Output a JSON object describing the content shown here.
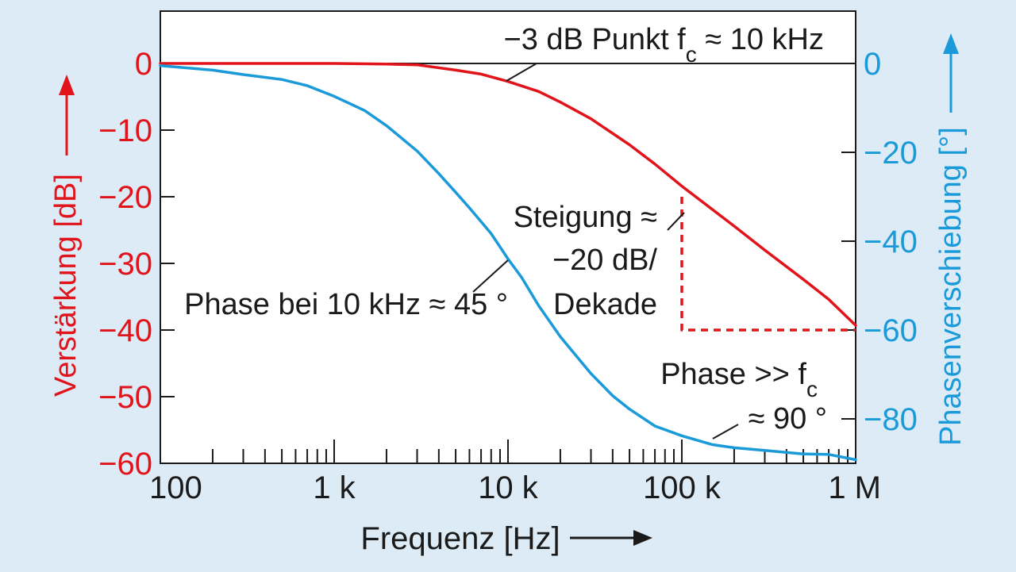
{
  "chart_data": {
    "type": "line",
    "x_scale": "log",
    "xlim": [
      100,
      1000000
    ],
    "xlabel": "Frequenz [Hz]",
    "x_ticks": [
      {
        "value": 100,
        "label": "100"
      },
      {
        "value": 1000,
        "label": "1 k"
      },
      {
        "value": 10000,
        "label": "10 k"
      },
      {
        "value": 100000,
        "label": "100 k"
      },
      {
        "value": 1000000,
        "label": "1 M"
      }
    ],
    "y_left": {
      "label": "Verstärkung [dB]",
      "lim": [
        -60,
        0
      ],
      "ticks": [
        {
          "value": 0,
          "label": "0"
        },
        {
          "value": -10,
          "label": "−10"
        },
        {
          "value": -20,
          "label": "−20"
        },
        {
          "value": -30,
          "label": "−30"
        },
        {
          "value": -40,
          "label": "−40"
        },
        {
          "value": -50,
          "label": "−50"
        },
        {
          "value": -60,
          "label": "−60"
        }
      ],
      "color": "#e2141b"
    },
    "y_right": {
      "label": "Phasenverschiebung [°]",
      "lim": [
        -90,
        0
      ],
      "ticks": [
        {
          "value": 0,
          "label": "0"
        },
        {
          "value": -20,
          "label": "−20"
        },
        {
          "value": -40,
          "label": "−40"
        },
        {
          "value": -60,
          "label": "−60"
        },
        {
          "value": -80,
          "label": "−80"
        }
      ],
      "color": "#1a9ad9"
    },
    "grid": false,
    "series": [
      {
        "axis": "left",
        "color": "#e2141b",
        "x": [
          100,
          500,
          1000,
          2000,
          3000,
          5000,
          7000,
          10000,
          15000,
          20000,
          30000,
          50000,
          70000,
          100000,
          200000,
          300000,
          500000,
          700000,
          1000000
        ],
        "y": [
          0,
          0,
          0,
          -0.1,
          -0.2,
          -1.0,
          -1.6,
          -2.7,
          -4.2,
          -5.8,
          -8.3,
          -12.2,
          -15.1,
          -18.4,
          -24.4,
          -28.0,
          -32.4,
          -35.4,
          -39.3
        ]
      },
      {
        "axis": "right",
        "color": "#1a9ad9",
        "x": [
          100,
          200,
          300,
          500,
          700,
          1000,
          1500,
          2000,
          3000,
          4000,
          5000,
          6000,
          7000,
          8000,
          10000,
          12000,
          15000,
          20000,
          30000,
          40000,
          50000,
          70000,
          100000,
          150000,
          200000,
          300000,
          500000,
          700000,
          1000000
        ],
        "y": [
          -0.5,
          -1.5,
          -2.5,
          -3.6,
          -5.0,
          -7.4,
          -10.6,
          -14.0,
          -19.7,
          -24.8,
          -29.0,
          -32.5,
          -35.6,
          -38.3,
          -44.0,
          -48.2,
          -54.5,
          -61.5,
          -69.8,
          -74.8,
          -77.8,
          -81.6,
          -83.8,
          -85.8,
          -86.5,
          -87.1,
          -87.9,
          -88.0,
          -89.2
        ]
      },
      {
        "axis": "left",
        "color": "#e2141b",
        "dashed": true,
        "x": [
          100000,
          100000,
          1000000
        ],
        "y": [
          -20,
          -40,
          -40
        ]
      }
    ],
    "annotations": [
      {
        "text": "−3 dB Punkt f",
        "sub": "c",
        "after": " ≈ 10 kHz"
      },
      {
        "text": "Steigung ≈"
      },
      {
        "text": "−20 dB/"
      },
      {
        "text": "Dekade"
      },
      {
        "text": "Phase bei 10 kHz ≈ 45 °"
      },
      {
        "text": "Phase >> f",
        "sub": "c"
      },
      {
        "text": "≈ 90 °"
      }
    ]
  }
}
